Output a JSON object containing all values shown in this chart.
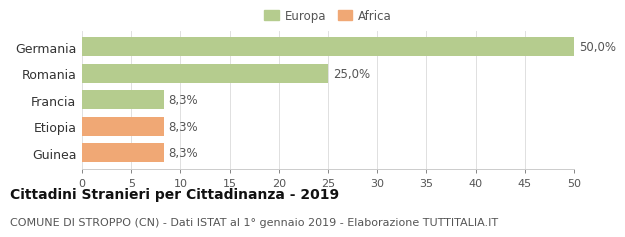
{
  "categories": [
    "Guinea",
    "Etiopia",
    "Francia",
    "Romania",
    "Germania"
  ],
  "values": [
    8.3,
    8.3,
    8.3,
    25.0,
    50.0
  ],
  "colors": [
    "#f0a875",
    "#f0a875",
    "#b5cc8e",
    "#b5cc8e",
    "#b5cc8e"
  ],
  "bar_labels": [
    "8,3%",
    "8,3%",
    "8,3%",
    "25,0%",
    "50,0%"
  ],
  "legend_labels": [
    "Europa",
    "Africa"
  ],
  "legend_colors": [
    "#b5cc8e",
    "#f0a875"
  ],
  "xlim": [
    0,
    50
  ],
  "xticks": [
    0,
    5,
    10,
    15,
    20,
    25,
    30,
    35,
    40,
    45,
    50
  ],
  "title_bold": "Cittadini Stranieri per Cittadinanza - 2019",
  "subtitle": "COMUNE DI STROPPO (CN) - Dati ISTAT al 1° gennaio 2019 - Elaborazione TUTTITALIA.IT",
  "background_color": "#ffffff",
  "bar_height": 0.72,
  "label_fontsize": 8.5,
  "title_fontsize": 10,
  "subtitle_fontsize": 8,
  "tick_fontsize": 8,
  "ylabel_fontsize": 9,
  "grid_color": "#e0e0e0",
  "spine_color": "#cccccc",
  "text_color": "#555555",
  "title_color": "#111111"
}
